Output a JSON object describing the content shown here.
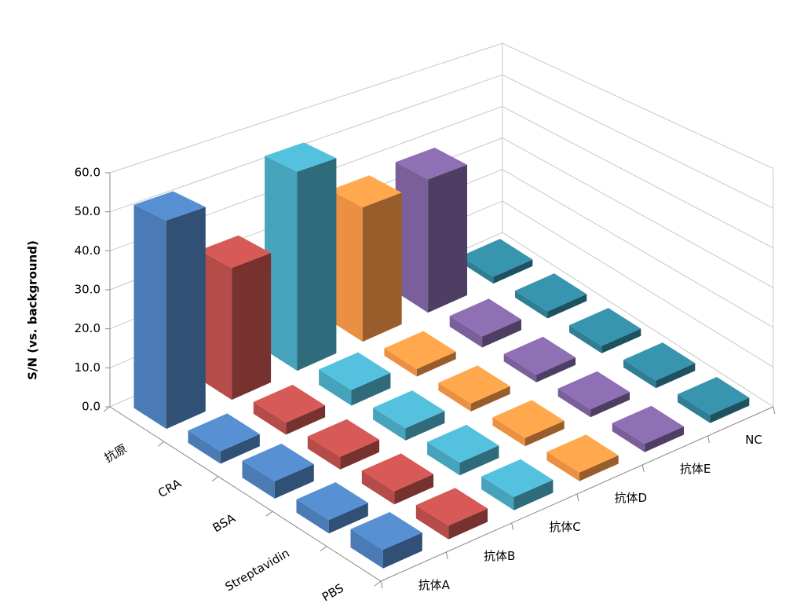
{
  "chart_data": {
    "type": "bar3d",
    "y_label": "S/N (vs. background)",
    "categories": [
      "抗原",
      "CRA",
      "BSA",
      "Streptavidin",
      "PBS"
    ],
    "series": [
      {
        "name": "抗体A",
        "color": "#4f81bd",
        "values": [
          52,
          3,
          4,
          3,
          4
        ]
      },
      {
        "name": "抗体B",
        "color": "#c0504d",
        "values": [
          34,
          3,
          3,
          3,
          3
        ]
      },
      {
        "name": "抗体C",
        "color": "#4bacc6",
        "values": [
          53,
          4,
          3,
          3,
          3
        ]
      },
      {
        "name": "抗体D",
        "color": "#f79646",
        "values": [
          37,
          2,
          2,
          2,
          2
        ]
      },
      {
        "name": "抗体E",
        "color": "#8064a2",
        "values": [
          38,
          3,
          2,
          2,
          2
        ]
      },
      {
        "name": "NC",
        "color": "#31859c",
        "values": [
          2,
          2,
          2,
          2,
          2
        ]
      }
    ],
    "ylim": [
      0,
      60
    ],
    "yticks": [
      {
        "value": 0,
        "label": "0.0"
      },
      {
        "value": 10,
        "label": "10.0"
      },
      {
        "value": 20,
        "label": "20.0"
      },
      {
        "value": 30,
        "label": "30.0"
      },
      {
        "value": 40,
        "label": "40.0"
      },
      {
        "value": 50,
        "label": "50.0"
      },
      {
        "value": 60,
        "label": "60.0"
      }
    ],
    "grid": true
  }
}
